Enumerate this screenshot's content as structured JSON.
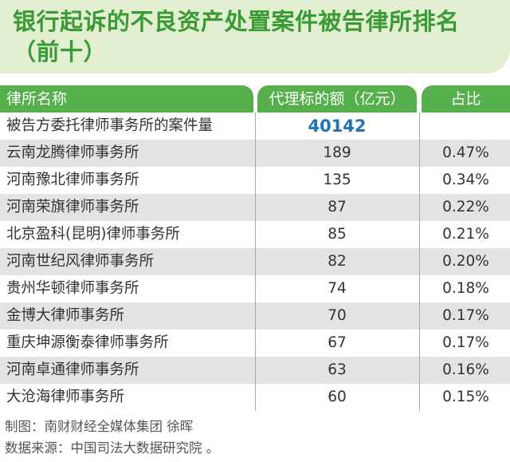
{
  "title": {
    "line1": "银行起诉的不良资产处置案件被告律所排名",
    "line2": "（前十）"
  },
  "chart_data": {
    "type": "table",
    "columns": [
      "律所名称",
      "代理标的额（亿元）",
      "占比"
    ],
    "summary_row": {
      "name": "被告方委托律师事务所的案件量",
      "amount": "40142",
      "share": ""
    },
    "rows": [
      {
        "name": "云南龙腾律师事务所",
        "amount": "189",
        "share": "0.47%"
      },
      {
        "name": "河南豫北律师事务所",
        "amount": "135",
        "share": "0.34%"
      },
      {
        "name": "河南荣旗律师事务所",
        "amount": "87",
        "share": "0.22%"
      },
      {
        "name": "北京盈科(昆明)律师事务所",
        "amount": "85",
        "share": "0.21%"
      },
      {
        "name": "河南世纪风律师事务所",
        "amount": "82",
        "share": "0.20%"
      },
      {
        "name": "贵州华顿律师事务所",
        "amount": "74",
        "share": "0.18%"
      },
      {
        "name": "金博大律师事务所",
        "amount": "70",
        "share": "0.17%"
      },
      {
        "name": "重庆坤源衡泰律师事务所",
        "amount": "67",
        "share": "0.17%"
      },
      {
        "name": "河南卓通律师事务所",
        "amount": "63",
        "share": "0.16%"
      },
      {
        "name": "大沧海律师事务所",
        "amount": "60",
        "share": "0.15%"
      }
    ]
  },
  "footer": {
    "credit": "制图：南财财经全媒体集团 徐晖",
    "source": "数据来源：中国司法大数据研究院 。"
  },
  "colors": {
    "title_text": "#3a9a35",
    "title_background": "#e2efd0",
    "header_background": "#55b04b",
    "highlight_value": "#1e74b8",
    "shaded_row": "#e3e3e3"
  }
}
